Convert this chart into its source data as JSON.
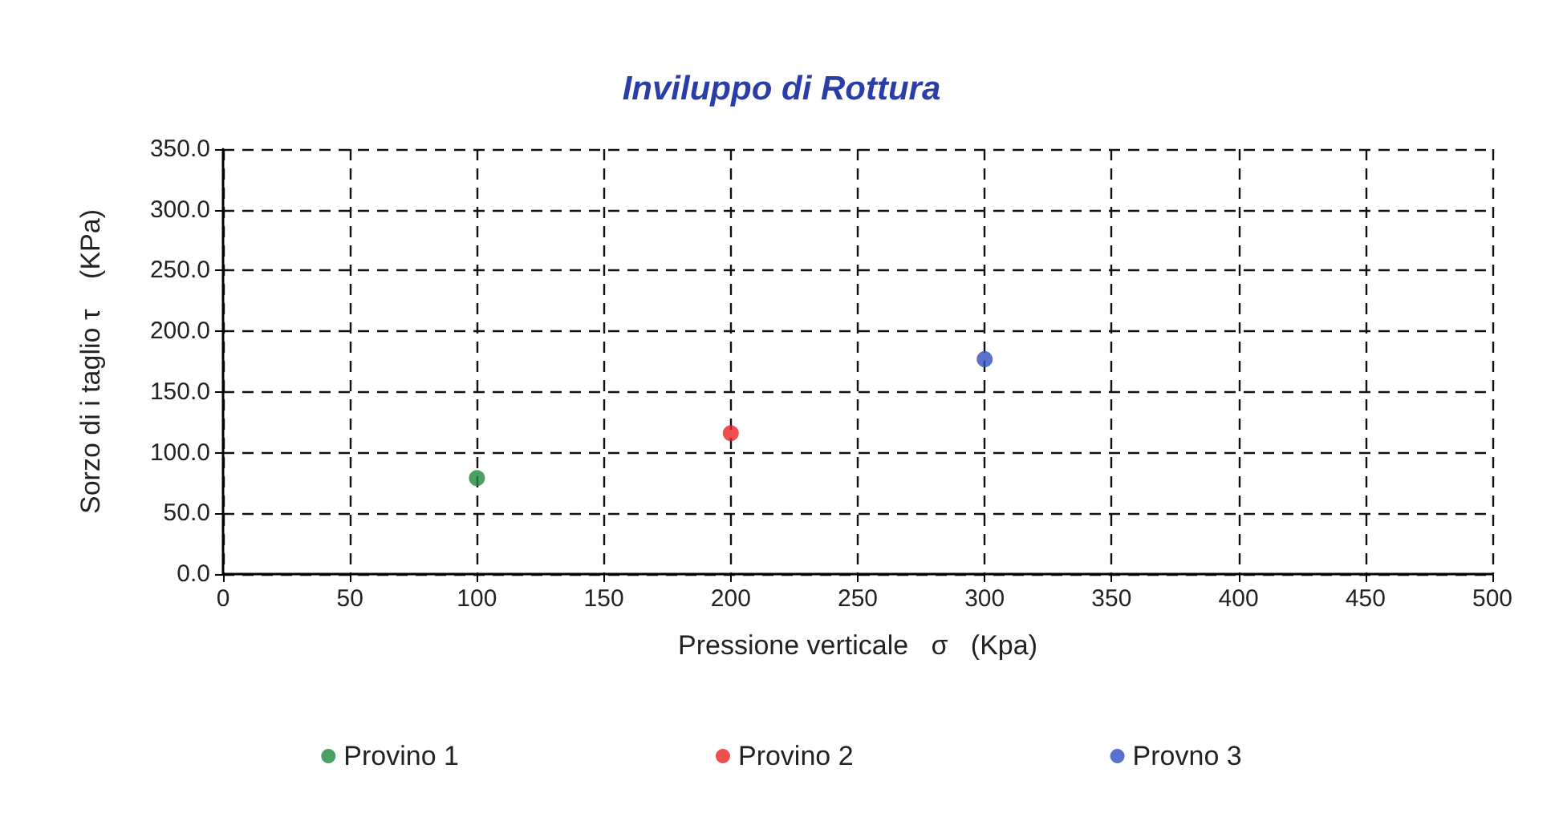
{
  "chart_data": {
    "type": "scatter",
    "title": "Inviluppo di Rottura",
    "xlabel": "Pressione verticale   σ   (Kpa)",
    "ylabel": "Sorzo di i taglio τ    (KPa)",
    "series": [
      {
        "name": "Provino 1",
        "color": "#1a8a3a",
        "x": [
          100
        ],
        "values": [
          79
        ]
      },
      {
        "name": "Provino 2",
        "color": "#ee2222",
        "x": [
          200
        ],
        "values": [
          116
        ]
      },
      {
        "name": "Provno 3",
        "color": "#3050c0",
        "x": [
          300
        ],
        "values": [
          177
        ]
      }
    ],
    "xlim": [
      0,
      500
    ],
    "xticks": [
      0,
      50,
      100,
      150,
      200,
      250,
      300,
      350,
      400,
      450,
      500
    ],
    "ylim": [
      0,
      350
    ],
    "yticks": [
      {
        "value": 0,
        "label": "0.0"
      },
      {
        "value": 50,
        "label": "50.0"
      },
      {
        "value": 100,
        "label": "100.0"
      },
      {
        "value": 150,
        "label": "150.0"
      },
      {
        "value": 200,
        "label": "200.0"
      },
      {
        "value": 250,
        "label": "250.0"
      },
      {
        "value": 300,
        "label": "300.0"
      },
      {
        "value": 350,
        "label": "350.0"
      }
    ],
    "grid": true,
    "legend": "bottom",
    "marker": "circle"
  }
}
